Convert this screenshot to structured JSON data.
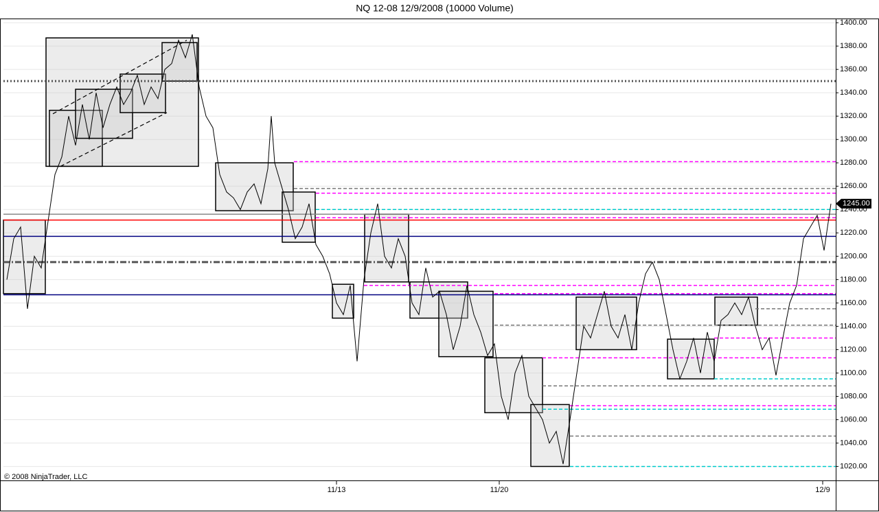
{
  "chart_data": {
    "type": "line",
    "title": "NQ 12-08  12/9/2008 (10000 Volume)",
    "copyright": "© 2008 NinjaTrader, LLC",
    "color": "#000000",
    "xlim": [
      5,
      1217
    ],
    "ylim": [
      1008,
      1403
    ],
    "yticks": [
      {
        "value": 1020,
        "label": "1020.00"
      },
      {
        "value": 1040,
        "label": "1040.00"
      },
      {
        "value": 1060,
        "label": "1060.00"
      },
      {
        "value": 1080,
        "label": "1080.00"
      },
      {
        "value": 1100,
        "label": "1100.00"
      },
      {
        "value": 1120,
        "label": "1120.00"
      },
      {
        "value": 1140,
        "label": "1140.00"
      },
      {
        "value": 1160,
        "label": "1160.00"
      },
      {
        "value": 1180,
        "label": "1180.00"
      },
      {
        "value": 1200,
        "label": "1200.00"
      },
      {
        "value": 1220,
        "label": "1220.00"
      },
      {
        "value": 1240,
        "label": "1240.00"
      },
      {
        "value": 1260,
        "label": "1260.00"
      },
      {
        "value": 1280,
        "label": "1280.00"
      },
      {
        "value": 1300,
        "label": "1300.00"
      },
      {
        "value": 1320,
        "label": "1320.00"
      },
      {
        "value": 1340,
        "label": "1340.00"
      },
      {
        "value": 1360,
        "label": "1360.00"
      },
      {
        "value": 1380,
        "label": "1380.00"
      },
      {
        "value": 1400,
        "label": "1400.00"
      }
    ],
    "xticks": [
      {
        "value": 490,
        "label": "11/13"
      },
      {
        "value": 727,
        "label": "11/20"
      },
      {
        "value": 1198,
        "label": "12/9"
      }
    ],
    "grid": true,
    "last_price": {
      "value": 1245,
      "label": "1245.00"
    },
    "x": [
      10,
      20,
      30,
      40,
      50,
      60,
      70,
      80,
      90,
      100,
      110,
      120,
      130,
      140,
      150,
      160,
      170,
      180,
      190,
      200,
      210,
      220,
      230,
      240,
      250,
      260,
      270,
      280,
      290,
      300,
      310,
      320,
      330,
      340,
      350,
      360,
      370,
      380,
      390,
      395,
      400,
      410,
      420,
      430,
      440,
      450,
      460,
      470,
      480,
      490,
      500,
      510,
      520,
      530,
      540,
      550,
      560,
      570,
      580,
      590,
      600,
      610,
      620,
      630,
      640,
      650,
      660,
      670,
      680,
      690,
      700,
      710,
      720,
      730,
      740,
      750,
      760,
      770,
      780,
      790,
      800,
      810,
      820,
      830,
      840,
      850,
      860,
      870,
      880,
      890,
      900,
      910,
      920,
      930,
      940,
      950,
      960,
      970,
      980,
      990,
      1000,
      1010,
      1020,
      1030,
      1040,
      1050,
      1060,
      1070,
      1080,
      1090,
      1100,
      1110,
      1120,
      1130,
      1140,
      1150,
      1160,
      1170,
      1180,
      1190,
      1200,
      1210
    ],
    "values": [
      1180,
      1215,
      1225,
      1155,
      1200,
      1190,
      1230,
      1270,
      1285,
      1320,
      1295,
      1330,
      1300,
      1340,
      1310,
      1330,
      1345,
      1330,
      1340,
      1355,
      1330,
      1345,
      1335,
      1360,
      1365,
      1385,
      1370,
      1390,
      1345,
      1320,
      1310,
      1270,
      1255,
      1250,
      1240,
      1255,
      1262,
      1245,
      1275,
      1320,
      1280,
      1260,
      1240,
      1215,
      1225,
      1245,
      1210,
      1200,
      1185,
      1160,
      1150,
      1175,
      1110,
      1180,
      1220,
      1245,
      1200,
      1190,
      1215,
      1200,
      1160,
      1150,
      1190,
      1165,
      1170,
      1150,
      1120,
      1140,
      1175,
      1150,
      1135,
      1115,
      1125,
      1080,
      1060,
      1100,
      1115,
      1080,
      1070,
      1060,
      1040,
      1050,
      1022,
      1060,
      1100,
      1140,
      1130,
      1150,
      1170,
      1140,
      1130,
      1150,
      1120,
      1160,
      1185,
      1195,
      1180,
      1150,
      1120,
      1095,
      1110,
      1130,
      1100,
      1135,
      1110,
      1145,
      1150,
      1160,
      1150,
      1165,
      1140,
      1120,
      1130,
      1098,
      1130,
      1160,
      1175,
      1215,
      1225,
      1235,
      1205,
      1245
    ],
    "levels": [
      {
        "value": 1350,
        "color": "#555555",
        "style": "dotted",
        "x_start": 5
      },
      {
        "value": 1281,
        "color": "#ff00ff",
        "style": "dashed",
        "x_start": 428
      },
      {
        "value": 1258,
        "color": "#777777",
        "style": "dashed",
        "x_start": 428
      },
      {
        "value": 1254,
        "color": "#ff00ff",
        "style": "dashed",
        "x_start": 460
      },
      {
        "value": 1240,
        "color": "#00cccc",
        "style": "dashed",
        "x_start": 460
      },
      {
        "value": 1236,
        "color": "#888888",
        "style": "solid",
        "x_start": 5
      },
      {
        "value": 1233,
        "color": "#ff00ff",
        "style": "dashed",
        "x_start": 460
      },
      {
        "value": 1231,
        "color": "#ff0000",
        "style": "solid",
        "x_start": 5
      },
      {
        "value": 1217,
        "color": "#000080",
        "style": "solid",
        "x_start": 5
      },
      {
        "value": 1195,
        "color": "#555555",
        "style": "dashdot",
        "x_start": 5
      },
      {
        "value": 1175,
        "color": "#ff00ff",
        "style": "dashed",
        "x_start": 530
      },
      {
        "value": 1168,
        "color": "#ff00ff",
        "style": "dashed",
        "x_start": 720
      },
      {
        "value": 1167,
        "color": "#000080",
        "style": "solid",
        "x_start": 5
      },
      {
        "value": 1155,
        "color": "#777777",
        "style": "dashed",
        "x_start": 1100
      },
      {
        "value": 1141,
        "color": "#777777",
        "style": "dashed",
        "x_start": 720
      },
      {
        "value": 1130,
        "color": "#ff00ff",
        "style": "dashed",
        "x_start": 1040
      },
      {
        "value": 1113,
        "color": "#ff00ff",
        "style": "dashed",
        "x_start": 790
      },
      {
        "value": 1095,
        "color": "#00cccc",
        "style": "dashed",
        "x_start": 1040
      },
      {
        "value": 1089,
        "color": "#777777",
        "style": "dashed",
        "x_start": 790
      },
      {
        "value": 1072,
        "color": "#ff00ff",
        "style": "dashed",
        "x_start": 830
      },
      {
        "value": 1069,
        "color": "#00cccc",
        "style": "dashed",
        "x_start": 790
      },
      {
        "value": 1046,
        "color": "#777777",
        "style": "dashed",
        "x_start": 830
      },
      {
        "value": 1020,
        "color": "#00cccc",
        "style": "dashed",
        "x_start": 830
      }
    ],
    "boxes": [
      {
        "x0": 67,
        "x1": 289,
        "y0": 1277,
        "y1": 1387
      },
      {
        "x0": 72,
        "x1": 149,
        "y0": 1277,
        "y1": 1325
      },
      {
        "x0": 110,
        "x1": 193,
        "y0": 1301,
        "y1": 1343
      },
      {
        "x0": 175,
        "x1": 241,
        "y0": 1323,
        "y1": 1356
      },
      {
        "x0": 236,
        "x1": 287,
        "y0": 1350,
        "y1": 1383
      },
      {
        "x0": 5,
        "x1": 66,
        "y0": 1168,
        "y1": 1231
      },
      {
        "x0": 314,
        "x1": 427,
        "y0": 1239,
        "y1": 1280
      },
      {
        "x0": 411,
        "x1": 459,
        "y0": 1212,
        "y1": 1255
      },
      {
        "x0": 484,
        "x1": 515,
        "y0": 1147,
        "y1": 1176
      },
      {
        "x0": 531,
        "x1": 595,
        "y0": 1178,
        "y1": 1236
      },
      {
        "x0": 597,
        "x1": 681,
        "y0": 1147,
        "y1": 1178
      },
      {
        "x0": 639,
        "x1": 718,
        "y0": 1114,
        "y1": 1170
      },
      {
        "x0": 706,
        "x1": 790,
        "y0": 1066,
        "y1": 1113
      },
      {
        "x0": 773,
        "x1": 829,
        "y0": 1020,
        "y1": 1073
      },
      {
        "x0": 839,
        "x1": 927,
        "y0": 1120,
        "y1": 1165
      },
      {
        "x0": 972,
        "x1": 1040,
        "y0": 1095,
        "y1": 1129
      },
      {
        "x0": 1041,
        "x1": 1103,
        "y0": 1141,
        "y1": 1165
      }
    ],
    "trendlines": [
      {
        "x0": 77,
        "y0": 1322,
        "x1": 272,
        "y1": 1385
      },
      {
        "x0": 88,
        "y0": 1277,
        "x1": 243,
        "y1": 1323
      }
    ]
  }
}
